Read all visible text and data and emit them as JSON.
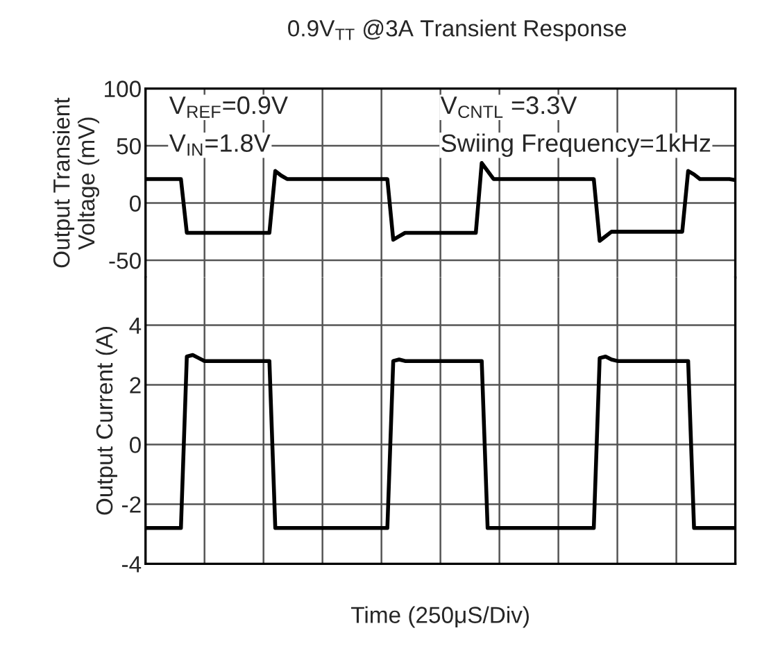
{
  "chart_data": [
    {
      "type": "line",
      "title": "0.9V$_{TT}$ @3A Transient Response",
      "ylabel": "Output Transient\nVoltage (mV)",
      "categories": [
        null,
        null,
        null,
        null,
        null,
        null,
        null,
        null,
        null,
        null,
        null,
        null,
        null,
        null,
        null,
        null,
        null,
        null,
        null,
        null,
        null,
        null,
        null,
        null,
        null,
        null,
        null,
        null,
        null,
        null,
        null,
        null,
        null,
        null,
        null,
        null,
        null,
        null,
        null,
        null,
        null,
        null,
        null,
        null,
        null,
        null,
        null,
        null,
        null,
        null,
        null,
        null,
        null,
        null,
        null,
        null,
        null,
        null,
        null,
        null,
        null,
        null,
        null,
        null,
        null,
        null,
        null,
        null,
        null,
        null,
        null,
        null,
        null,
        null,
        null,
        null,
        null,
        null,
        null,
        null,
        null,
        null,
        null,
        null,
        null,
        null,
        null,
        null,
        null,
        null,
        null,
        null,
        null,
        null,
        null,
        null,
        null,
        null,
        null,
        null,
        null
      ],
      "series": [
        {
          "color": "#000000",
          "values": [
            21,
            21,
            21,
            21,
            21,
            21,
            21,
            -26,
            -26,
            -26,
            -26,
            -26,
            -26,
            -26,
            -26,
            -26,
            -26,
            -26,
            -26,
            -26,
            -26,
            -26,
            28,
            24,
            21,
            21,
            21,
            21,
            21,
            21,
            21,
            21,
            21,
            21,
            21,
            21,
            21,
            21,
            21,
            21,
            21,
            21,
            -32,
            -29,
            -26,
            -26,
            -26,
            -26,
            -26,
            -26,
            -26,
            -26,
            -26,
            -26,
            -26,
            -26,
            -26,
            35,
            28,
            21,
            21,
            21,
            21,
            21,
            21,
            21,
            21,
            21,
            21,
            21,
            21,
            21,
            21,
            21,
            21,
            21,
            21,
            -33,
            -29,
            -25,
            -25,
            -25,
            -25,
            -25,
            -25,
            -25,
            -25,
            -25,
            -25,
            -25,
            -25,
            -25,
            28,
            25,
            21,
            21,
            21,
            21,
            21,
            21,
            20
          ]
        }
      ],
      "ylim": [
        -65,
        100
      ],
      "yticks": [
        -50,
        0,
        50,
        100
      ],
      "grid": true,
      "tick_labels": "y",
      "line_style": "solid",
      "marker": "none",
      "annotations": [
        "V$_{REF}$=0.9V",
        "V$_{IN}$=1.8V",
        "V$_{CNTL}$ =3.3V",
        "Swiing Frequency=1kHz"
      ]
    },
    {
      "type": "line",
      "xlabel": "Time (250μS/Div)",
      "ylabel": "Output Current (A)",
      "categories": [
        null,
        null,
        null,
        null,
        null,
        null,
        null,
        null,
        null,
        null,
        null,
        null,
        null,
        null,
        null,
        null,
        null,
        null,
        null,
        null,
        null,
        null,
        null,
        null,
        null,
        null,
        null,
        null,
        null,
        null,
        null,
        null,
        null,
        null,
        null,
        null,
        null,
        null,
        null,
        null,
        null,
        null,
        null,
        null,
        null,
        null,
        null,
        null,
        null,
        null,
        null,
        null,
        null,
        null,
        null,
        null,
        null,
        null,
        null,
        null,
        null,
        null,
        null,
        null,
        null,
        null,
        null,
        null,
        null,
        null,
        null,
        null,
        null,
        null,
        null,
        null,
        null,
        null,
        null,
        null,
        null,
        null,
        null,
        null,
        null,
        null,
        null,
        null,
        null,
        null,
        null,
        null,
        null,
        null,
        null,
        null,
        null,
        null,
        null,
        null,
        null
      ],
      "series": [
        {
          "color": "#000000",
          "values": [
            -2.8,
            -2.8,
            -2.8,
            -2.8,
            -2.8,
            -2.8,
            -2.8,
            2.95,
            3.0,
            2.9,
            2.8,
            2.8,
            2.8,
            2.8,
            2.8,
            2.8,
            2.8,
            2.8,
            2.8,
            2.8,
            2.8,
            2.8,
            -2.8,
            -2.8,
            -2.8,
            -2.8,
            -2.8,
            -2.8,
            -2.8,
            -2.8,
            -2.8,
            -2.8,
            -2.8,
            -2.8,
            -2.8,
            -2.8,
            -2.8,
            -2.8,
            -2.8,
            -2.8,
            -2.8,
            -2.8,
            2.8,
            2.85,
            2.8,
            2.8,
            2.8,
            2.8,
            2.8,
            2.8,
            2.8,
            2.8,
            2.8,
            2.8,
            2.8,
            2.8,
            2.8,
            2.8,
            -2.8,
            -2.8,
            -2.8,
            -2.8,
            -2.8,
            -2.8,
            -2.8,
            -2.8,
            -2.8,
            -2.8,
            -2.8,
            -2.8,
            -2.8,
            -2.8,
            -2.8,
            -2.8,
            -2.8,
            -2.8,
            -2.8,
            2.9,
            2.95,
            2.85,
            2.8,
            2.8,
            2.8,
            2.8,
            2.8,
            2.8,
            2.8,
            2.8,
            2.8,
            2.8,
            2.8,
            2.8,
            2.8,
            -2.8,
            -2.8,
            -2.8,
            -2.8,
            -2.8,
            -2.8,
            -2.8,
            -2.8
          ]
        }
      ],
      "ylim": [
        -4,
        5.6
      ],
      "yticks": [
        -4,
        -2,
        0,
        2,
        4
      ],
      "grid": true,
      "tick_labels": "y",
      "line_style": "solid",
      "marker": "none"
    }
  ]
}
